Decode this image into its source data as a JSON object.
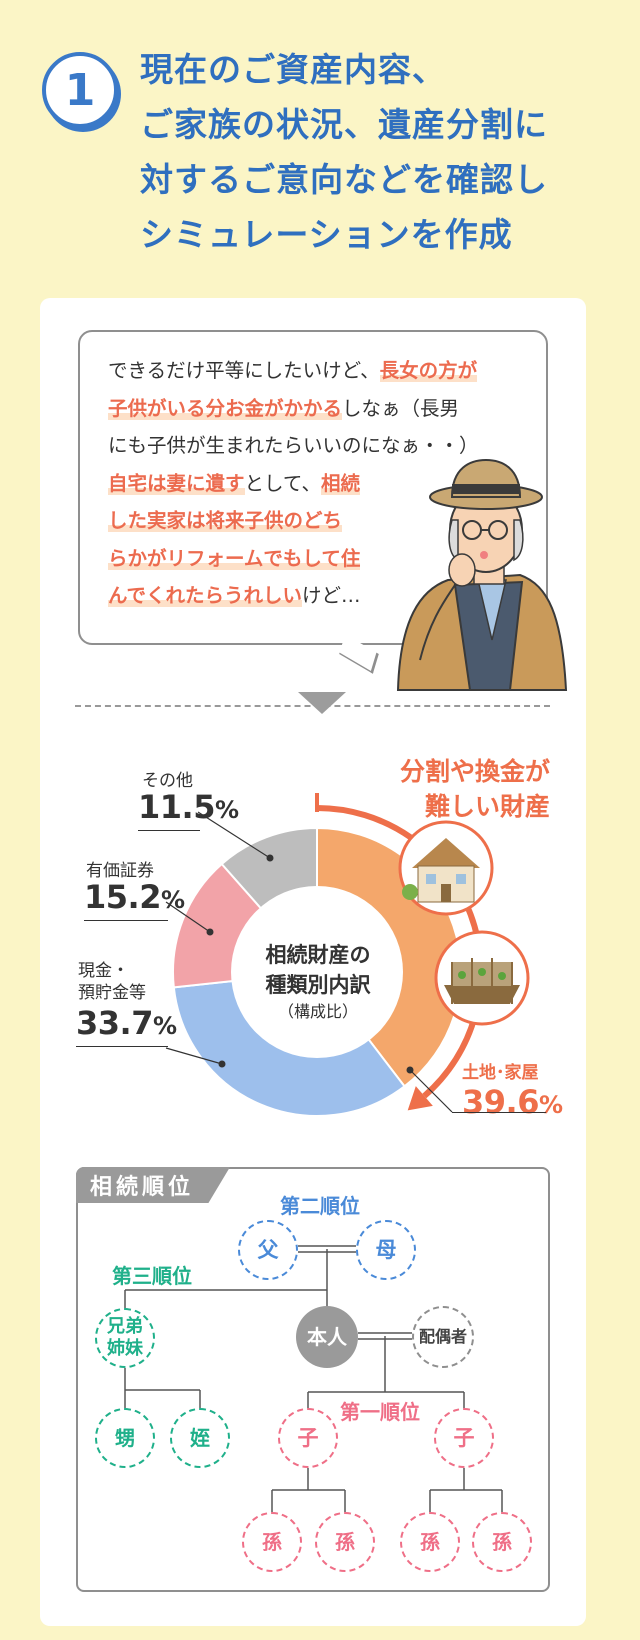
{
  "header": {
    "step_number": "1",
    "title_lines": [
      "現在のご資産内容、",
      "ご家族の状況、遺産分割に",
      "対するご意向などを確認し",
      "シミュレーションを作成"
    ]
  },
  "speech": {
    "line1_a": "できるだけ平等にしたいけど、",
    "line1_b": "長女の方が",
    "line2_a": "子供がいる分お金がかかる",
    "line2_b": "しなぁ（長男",
    "line3": "にも子供が生まれたらいいのになぁ・・）",
    "line4_a": "自宅は妻に遺す",
    "line4_b": "として、",
    "line4_c": "相続",
    "line5": "した実家は将来子供のどち",
    "line6": "らかがリフォームでもして住",
    "line7_a": "んでくれたらうれしい",
    "line7_b": "けど…"
  },
  "chart_data": {
    "type": "pie",
    "title": "相続財産の種類別内訳",
    "subtitle": "（構成比）",
    "unit": "%",
    "slices": [
      {
        "label": "土地･家屋",
        "value": 39.6,
        "color": "#f4a76b"
      },
      {
        "label": "現金・預貯金等",
        "value": 33.7,
        "color": "#9dbfec"
      },
      {
        "label": "有価証券",
        "value": 15.2,
        "color": "#f2a3a8"
      },
      {
        "label": "その他",
        "value": 11.5,
        "color": "#bdbdbd"
      }
    ],
    "annotation": "分割や換金が難しい財産",
    "colors": {
      "accent": "#ee6f4a"
    }
  },
  "chart_labels": {
    "other_l": "その他",
    "other_v": "11.5",
    "pct": "%",
    "sec_l": "有価証券",
    "sec_v": "15.2",
    "cash_l1": "現金・",
    "cash_l2": "預貯金等",
    "cash_v": "33.7",
    "land_l": "土地･家屋",
    "land_v": "39.6",
    "center1": "相続財産の",
    "center2": "種類別内訳",
    "center3": "（構成比）",
    "diff1": "分割や換金が",
    "diff2": "難しい財産"
  },
  "tree": {
    "tab": "相続順位",
    "rank2": "第二順位",
    "rank3": "第三順位",
    "rank1": "第一順位",
    "father": "父",
    "mother": "母",
    "siblings1": "兄弟",
    "siblings2": "姉妹",
    "self": "本人",
    "spouse": "配偶者",
    "nephew": "甥",
    "niece": "姪",
    "child": "子",
    "grandchild": "孫"
  }
}
